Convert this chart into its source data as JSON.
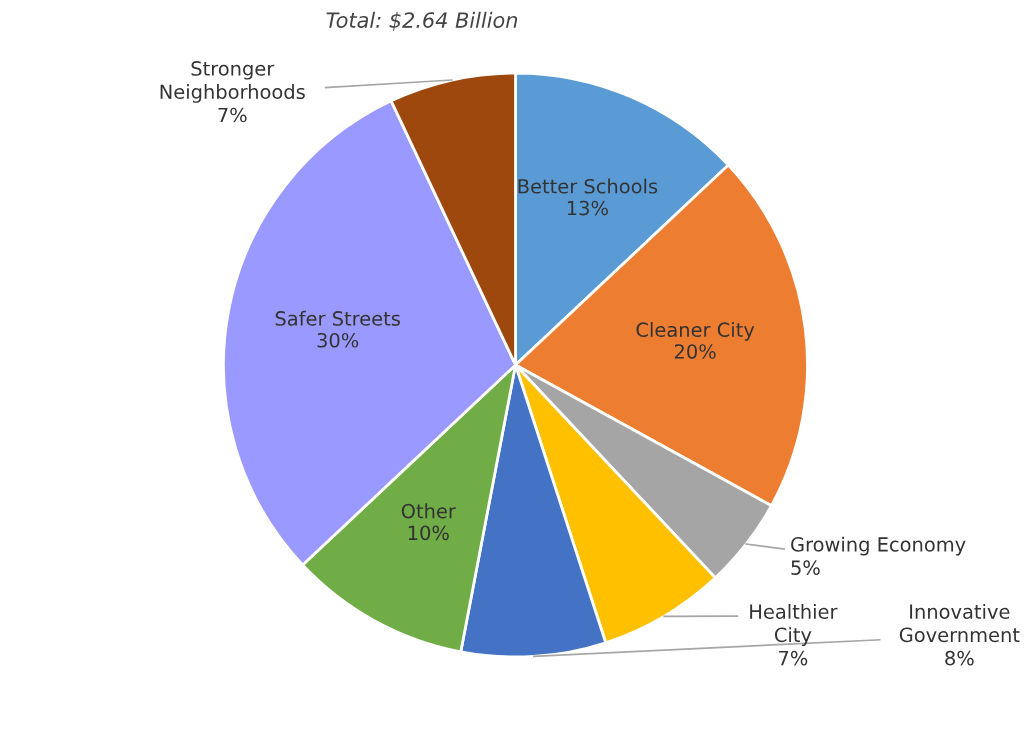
{
  "chart_data": {
    "type": "pie",
    "title": "Total: $2.64 Billion",
    "categories": [
      "Better Schools",
      "Cleaner City",
      "Growing Economy",
      "Healthier City",
      "Innovative Government",
      "Other",
      "Safer Streets",
      "Stronger Neighborhoods"
    ],
    "values": [
      13,
      20,
      5,
      7,
      8,
      10,
      30,
      7
    ],
    "value_labels": [
      "13%",
      "20%",
      "5%",
      "7%",
      "8%",
      "10%",
      "30%",
      "7%"
    ],
    "colors": [
      "#5b9bd5",
      "#ed7d31",
      "#a5a5a5",
      "#ffc000",
      "#4472c4",
      "#70ad47",
      "#9999ff",
      "#9e480e"
    ],
    "legend": false
  }
}
